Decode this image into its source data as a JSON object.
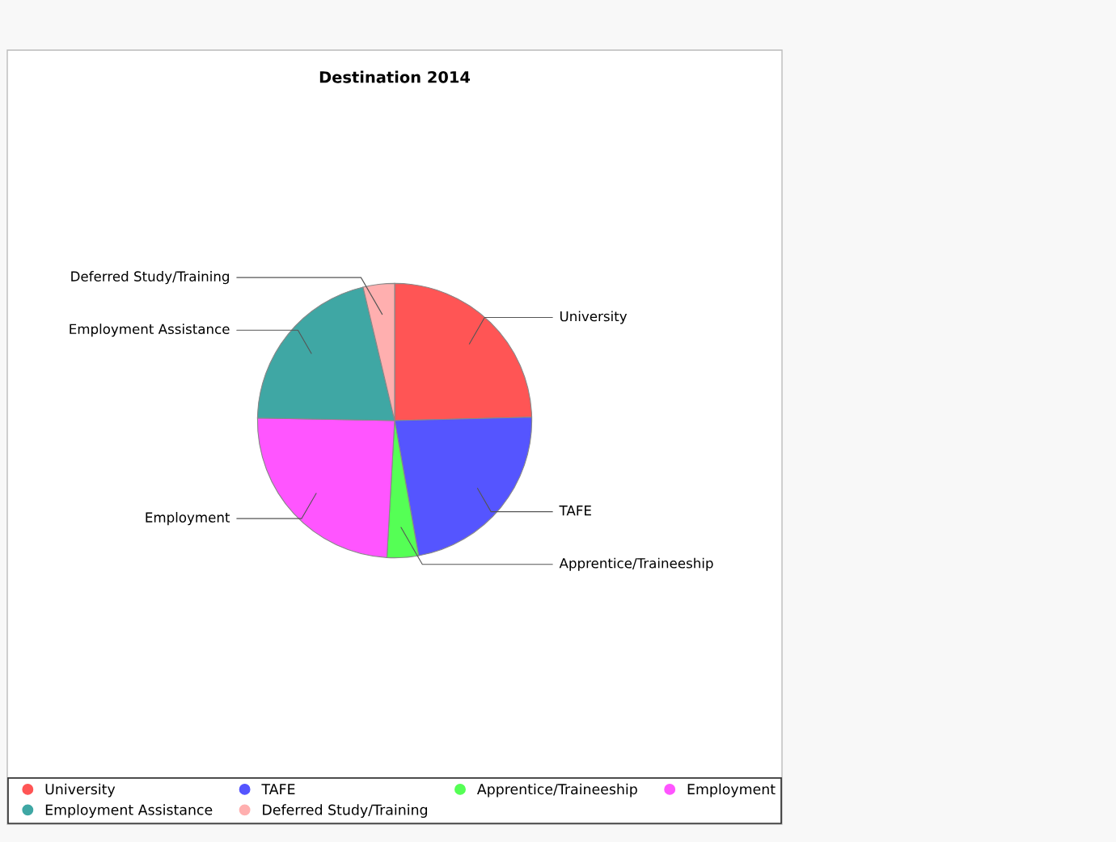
{
  "chart_data": {
    "type": "pie",
    "title": "Destination 2014",
    "categories": [
      "University",
      "TAFE",
      "Apprentice/Traineeship",
      "Employment",
      "Employment Assistance",
      "Deferred Study/Training"
    ],
    "values": [
      24.6,
      22.6,
      3.7,
      24.4,
      21.0,
      3.7
    ],
    "colors": [
      "#ff5555",
      "#5555ff",
      "#55ff55",
      "#ff55ff",
      "#3fa7a4",
      "#ffafaf"
    ],
    "legend": "bottom"
  }
}
